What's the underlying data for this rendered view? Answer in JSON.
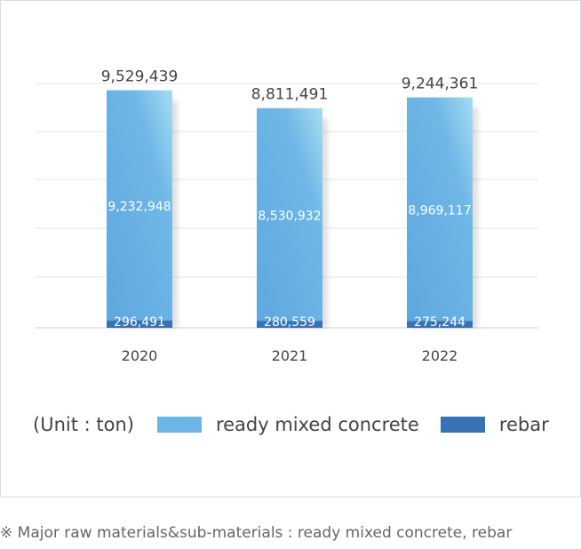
{
  "chart_data": {
    "type": "bar",
    "stacked": true,
    "categories": [
      "2020",
      "2021",
      "2022"
    ],
    "series": [
      {
        "name": "rebar",
        "values": [
          296491,
          280559,
          275244
        ],
        "color": "#3673b5"
      },
      {
        "name": "ready mixed concrete",
        "values": [
          9232948,
          8530932,
          8969117
        ],
        "color": "#6cb5e5"
      }
    ],
    "value_labels": {
      "rebar": [
        "296,491",
        "280,559",
        "275,244"
      ],
      "ready mixed concrete": [
        "9,232,948",
        "8,530,932",
        "8,969,117"
      ]
    },
    "totals": [
      9529439,
      8811491,
      9244361
    ],
    "total_labels": [
      "9,529,439",
      "8,811,491",
      "9,244,361"
    ],
    "ylim": [
      0,
      9800000
    ],
    "grid": true,
    "legend_position": "bottom",
    "unit_label": "(Unit : ton)"
  },
  "footnote": "※ Major raw materials&sub-materials : ready mixed concrete, rebar"
}
